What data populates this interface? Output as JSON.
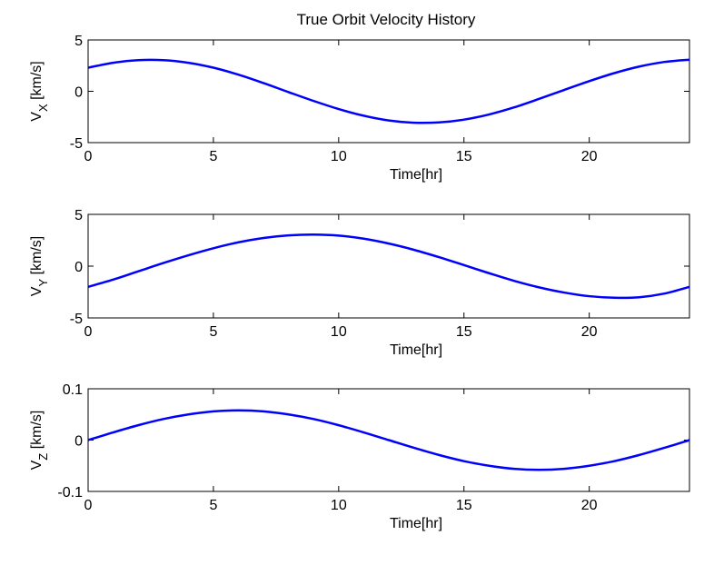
{
  "figure": {
    "title": "True Orbit Velocity History"
  },
  "chart_data": [
    {
      "type": "line",
      "title": "True Orbit Velocity History",
      "xlabel": "Time[hr]",
      "ylabel": "V_X [km/s]",
      "ylabel_main": "V",
      "ylabel_sub": "X",
      "ylabel_unit": " [km/s]",
      "xlim": [
        0,
        24
      ],
      "ylim": [
        -5,
        5
      ],
      "xticks": [
        0,
        5,
        10,
        15,
        20
      ],
      "yticks": [
        -5,
        0,
        5
      ],
      "grid": false,
      "line_color": "#0000ff",
      "series": [
        {
          "x": [
            0,
            1,
            2,
            3,
            4,
            5,
            6,
            7,
            8,
            9,
            10,
            11,
            12,
            13,
            14,
            15,
            16,
            17,
            18,
            19,
            20,
            21,
            22,
            23,
            24
          ],
          "values": [
            2.3,
            2.78,
            3.03,
            3.03,
            2.78,
            2.3,
            1.62,
            0.8,
            -0.08,
            -0.94,
            -1.73,
            -2.38,
            -2.84,
            -3.06,
            -3.03,
            -2.76,
            -2.26,
            -1.57,
            -0.74,
            0.13,
            0.99,
            1.77,
            2.41,
            2.86,
            3.08
          ]
        }
      ]
    },
    {
      "type": "line",
      "title": "",
      "xlabel": "Time[hr]",
      "ylabel": "V_Y [km/s]",
      "ylabel_main": "V",
      "ylabel_sub": "Y",
      "ylabel_unit": " [km/s]",
      "xlim": [
        0,
        24
      ],
      "ylim": [
        -5,
        5
      ],
      "xticks": [
        0,
        5,
        10,
        15,
        20
      ],
      "yticks": [
        -5,
        0,
        5
      ],
      "grid": false,
      "line_color": "#0000ff",
      "series": [
        {
          "x": [
            0,
            1,
            2,
            3,
            4,
            5,
            6,
            7,
            8,
            9,
            10,
            11,
            12,
            13,
            14,
            15,
            16,
            17,
            18,
            19,
            20,
            21,
            22,
            23,
            24
          ],
          "values": [
            -2.0,
            -1.3,
            -0.5,
            0.3,
            1.05,
            1.73,
            2.3,
            2.72,
            2.97,
            3.05,
            2.95,
            2.65,
            2.18,
            1.58,
            0.87,
            0.1,
            -0.68,
            -1.42,
            -2.05,
            -2.55,
            -2.9,
            -3.05,
            -3.0,
            -2.65,
            -2.0
          ]
        }
      ]
    },
    {
      "type": "line",
      "title": "",
      "xlabel": "Time[hr]",
      "ylabel": "V_Z [km/s]",
      "ylabel_main": "V",
      "ylabel_sub": "Z",
      "ylabel_unit": " [km/s]",
      "xlim": [
        0,
        24
      ],
      "ylim": [
        -0.1,
        0.1
      ],
      "xticks": [
        0,
        5,
        10,
        15,
        20
      ],
      "yticks": [
        -0.1,
        0,
        0.1
      ],
      "ytick_labels": [
        "-0.1",
        "0",
        "0.1"
      ],
      "grid": false,
      "line_color": "#0000ff",
      "series": [
        {
          "x": [
            0,
            1,
            2,
            3,
            4,
            5,
            6,
            7,
            8,
            9,
            10,
            11,
            12,
            13,
            14,
            15,
            16,
            17,
            18,
            19,
            20,
            21,
            22,
            23,
            24
          ],
          "values": [
            0.0,
            0.015,
            0.029,
            0.041,
            0.05,
            0.056,
            0.058,
            0.056,
            0.05,
            0.041,
            0.029,
            0.015,
            0.0,
            -0.015,
            -0.029,
            -0.041,
            -0.05,
            -0.056,
            -0.058,
            -0.056,
            -0.05,
            -0.041,
            -0.029,
            -0.015,
            0.0
          ]
        }
      ]
    }
  ]
}
